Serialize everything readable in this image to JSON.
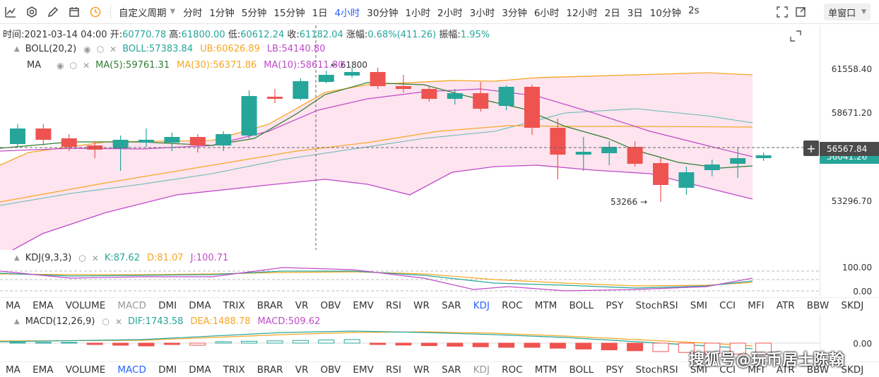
{
  "toolbar": {
    "icons": [
      "chart-line-icon",
      "settings-hex-icon",
      "pencil-icon",
      "calendar-icon",
      "clock-icon"
    ],
    "custom_period": "自定义周期",
    "periods": [
      "分时",
      "1分钟",
      "5分钟",
      "15分钟",
      "1日",
      "4小时",
      "30分钟",
      "1小时",
      "2小时",
      "3小时",
      "3分钟",
      "6小时",
      "12小时",
      "2日",
      "3日",
      "10分钟",
      "2s"
    ],
    "active_period": "4小时",
    "window_mode": "单窗口"
  },
  "info": {
    "time_label": "时间:",
    "time": "2021-03-14 04:00",
    "open_label": "开:",
    "open": "60770.78",
    "high_label": "高:",
    "high": "61800.00",
    "low_label": "低:",
    "low": "60612.24",
    "close_label": "收:",
    "close": "61182.04",
    "change_label": "涨幅:",
    "change": "0.68%(411.26)",
    "amp_label": "振幅:",
    "amp": "1.95%"
  },
  "boll_legend": {
    "name": "BOLL(20,2)",
    "boll": "BOLL:57383.84",
    "ub": "UB:60626.89",
    "lb": "LB:54140.80"
  },
  "ma_legend": {
    "name": "MA",
    "ma5": "MA(5):59761.31",
    "ma30": "MA(30):56371.86",
    "ma10": "MA(10):58611.80"
  },
  "price_axis": {
    "labels": [
      "61558.40",
      "58671.20",
      "53296.70"
    ],
    "current": "56567.84",
    "current2": "56041.26",
    "low_marker": "53266",
    "high_marker": "61800"
  },
  "kdj_legend": {
    "name": "KDJ(9,3,3)",
    "k": "K:87.62",
    "d": "D:81.07",
    "j": "J:100.71"
  },
  "kdj_axis": {
    "labels": [
      "100.00",
      "0.00"
    ]
  },
  "macd_legend": {
    "name": "MACD(12,26,9)",
    "dif": "DIF:1743.58",
    "dea": "DEA:1488.78",
    "macd": "MACD:509.62"
  },
  "macd_axis": {
    "labels": [
      "0.00"
    ]
  },
  "indicator_tabs": [
    "MA",
    "EMA",
    "VOLUME",
    "MACD",
    "DMI",
    "DMA",
    "TRIX",
    "BRAR",
    "VR",
    "OBV",
    "EMV",
    "RSI",
    "WR",
    "SAR",
    "KDJ",
    "ROC",
    "MTM",
    "BOLL",
    "PSY",
    "StochRSI",
    "SMI",
    "CCI",
    "MFI",
    "ATR",
    "BBW",
    "SKDJ"
  ],
  "tabs_row1_active": "KDJ",
  "tabs_row1_disabled": "MACD",
  "tabs_row2_active": "MACD",
  "tabs_row2_disabled": "KDJ",
  "watermark": "搜狐号@玩币居士陈翰",
  "colors": {
    "up": "#26a69a",
    "down": "#ef5350",
    "ub": "#f5a623",
    "lb": "#c04ac9",
    "boll_mid": "#26a69a",
    "ma5": "#2e7d32",
    "ma10": "#c04ac9",
    "ma30": "#f5a623",
    "accent": "#2962ff"
  }
}
